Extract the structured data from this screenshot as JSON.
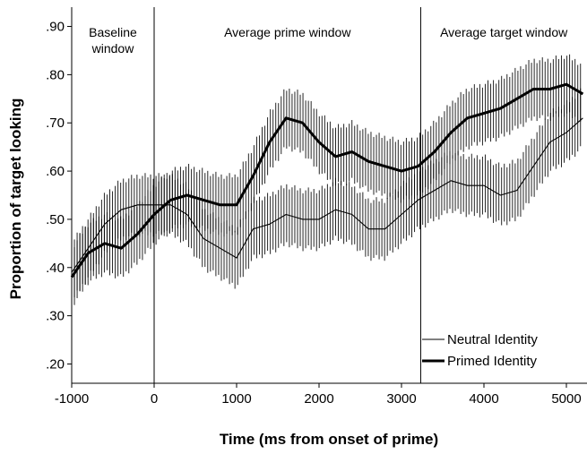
{
  "chart_data": {
    "type": "line",
    "title": "",
    "xlabel": "Time (ms from onset of prime)",
    "ylabel": "Proportion of target looking",
    "xlim": [
      -1000,
      5250
    ],
    "ylim": [
      0.16,
      0.94
    ],
    "x_ticks": [
      -1000,
      0,
      1000,
      2000,
      3000,
      4000,
      5000
    ],
    "x_tick_labels": [
      "-1000",
      "0",
      "1000",
      "2000",
      "3000",
      "4000",
      "5000"
    ],
    "y_ticks": [
      0.2,
      0.3,
      0.4,
      0.5,
      0.6,
      0.7,
      0.8,
      0.9
    ],
    "y_tick_labels": [
      ".20",
      ".30",
      ".40",
      ".50",
      ".60",
      ".70",
      ".80",
      ".90"
    ],
    "grid": false,
    "legend_position": "bottom-right",
    "window_boundaries": [
      0,
      3233
    ],
    "windows": [
      {
        "label_lines": [
          "Baseline",
          "window"
        ],
        "x_center": -500
      },
      {
        "label_lines": [
          "Average prime window"
        ],
        "x_center": 1617
      },
      {
        "label_lines": [
          "Average target window"
        ],
        "x_center": 4241
      }
    ],
    "error_bar_halfwidth": 0.06,
    "series": [
      {
        "name": "Neutral Identity",
        "style": "thin",
        "color": "#000000",
        "x": [
          -1000,
          -800,
          -600,
          -400,
          -200,
          0,
          200,
          400,
          600,
          800,
          1000,
          1200,
          1400,
          1600,
          1800,
          2000,
          2200,
          2400,
          2600,
          2800,
          3000,
          3200,
          3400,
          3600,
          3800,
          4000,
          4200,
          4400,
          4600,
          4800,
          5000,
          5200
        ],
        "values": [
          0.39,
          0.44,
          0.49,
          0.52,
          0.53,
          0.53,
          0.53,
          0.51,
          0.46,
          0.44,
          0.42,
          0.48,
          0.49,
          0.51,
          0.5,
          0.5,
          0.52,
          0.51,
          0.48,
          0.48,
          0.51,
          0.54,
          0.56,
          0.58,
          0.57,
          0.57,
          0.55,
          0.56,
          0.61,
          0.66,
          0.68,
          0.71
        ]
      },
      {
        "name": "Primed Identity",
        "style": "bold",
        "color": "#000000",
        "x": [
          -1000,
          -800,
          -600,
          -400,
          -200,
          0,
          200,
          400,
          600,
          800,
          1000,
          1200,
          1400,
          1600,
          1800,
          2000,
          2200,
          2400,
          2600,
          2800,
          3000,
          3200,
          3400,
          3600,
          3800,
          4000,
          4200,
          4400,
          4600,
          4800,
          5000,
          5200
        ],
        "values": [
          0.38,
          0.43,
          0.45,
          0.44,
          0.47,
          0.51,
          0.54,
          0.55,
          0.54,
          0.53,
          0.53,
          0.59,
          0.66,
          0.71,
          0.7,
          0.66,
          0.63,
          0.64,
          0.62,
          0.61,
          0.6,
          0.61,
          0.64,
          0.68,
          0.71,
          0.72,
          0.73,
          0.75,
          0.77,
          0.77,
          0.78,
          0.76
        ]
      }
    ]
  }
}
